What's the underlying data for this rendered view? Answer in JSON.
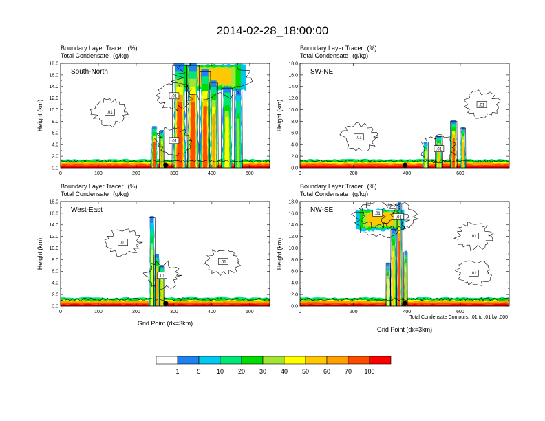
{
  "figure": {
    "title": "2014-02-28_18:00:00",
    "note": "Total Condensate Contours: .01 to .01 by .000"
  },
  "chart_data": [
    {
      "type": "heatmap",
      "panel_label": "South-North",
      "header_line1_field": "Boundary Layer Tracer",
      "header_line1_unit": "(%)",
      "header_line2_field": "Total Condensate",
      "header_line2_unit": "(g/kg)",
      "xlabel": "",
      "ylabel": "Height (km)",
      "xlim": [
        0,
        553
      ],
      "ylim": [
        0,
        18
      ],
      "x_ticks": [
        "0",
        "100",
        "200",
        "300",
        "400",
        "500"
      ],
      "y_ticks": [
        "0.0",
        "2.0",
        "4.0",
        "6.0",
        "8.0",
        "10.0",
        "12.0",
        "14.0",
        "16.0",
        "18.0"
      ],
      "station_x": 278,
      "contour_value_label": ".01",
      "contour_labels": [
        {
          "x": 130,
          "y": 9.6,
          "text": ".01"
        },
        {
          "x": 300,
          "y": 12.4,
          "text": ".01"
        },
        {
          "x": 300,
          "y": 4.7,
          "text": ".01"
        }
      ],
      "plumes": [
        {
          "center": 248,
          "width": 16,
          "top": 7.2,
          "strength": 70
        },
        {
          "center": 268,
          "width": 12,
          "top": 6.5,
          "strength": 60
        },
        {
          "center": 315,
          "width": 34,
          "top": 18,
          "strength": 80
        },
        {
          "center": 350,
          "width": 30,
          "top": 18,
          "strength": 75
        },
        {
          "center": 382,
          "width": 26,
          "top": 17,
          "strength": 70
        },
        {
          "center": 405,
          "width": 20,
          "top": 15,
          "strength": 60
        },
        {
          "center": 440,
          "width": 26,
          "top": 14,
          "strength": 45
        },
        {
          "center": 470,
          "width": 18,
          "top": 13.5,
          "strength": 30
        }
      ],
      "anvil": {
        "x0": 310,
        "x1": 490,
        "base": 13.0,
        "top": 18,
        "strength": 60
      }
    },
    {
      "type": "heatmap",
      "panel_label": "SW-NE",
      "header_line1_field": "Boundary Layer Tracer",
      "header_line1_unit": "(%)",
      "header_line2_field": "Total Condensate",
      "header_line2_unit": "(g/kg)",
      "xlabel": "",
      "ylabel": "Height (km)",
      "xlim": [
        0,
        783
      ],
      "ylim": [
        0,
        18
      ],
      "x_ticks": [
        "0",
        "200",
        "400",
        "600"
      ],
      "y_ticks": [
        "0.0",
        "2.0",
        "4.0",
        "6.0",
        "8.0",
        "10.0",
        "12.0",
        "14.0",
        "16.0",
        "18.0"
      ],
      "station_x": 393,
      "contour_value_label": ".01",
      "contour_labels": [
        {
          "x": 680,
          "y": 10.9,
          "text": ".01"
        },
        {
          "x": 220,
          "y": 5.3,
          "text": ".01"
        },
        {
          "x": 520,
          "y": 3.3,
          "text": ".01"
        }
      ],
      "plumes": [
        {
          "center": 520,
          "width": 24,
          "top": 5.5,
          "strength": 55
        },
        {
          "center": 575,
          "width": 22,
          "top": 8.2,
          "strength": 70
        },
        {
          "center": 610,
          "width": 18,
          "top": 7.0,
          "strength": 55
        },
        {
          "center": 470,
          "width": 18,
          "top": 4.5,
          "strength": 40
        }
      ],
      "anvil": null
    },
    {
      "type": "heatmap",
      "panel_label": "West-East",
      "header_line1_field": "Boundary Layer Tracer",
      "header_line1_unit": "(%)",
      "header_line2_field": "Total Condensate",
      "header_line2_unit": "(g/kg)",
      "xlabel": "Grid Point (dx=3km)",
      "ylabel": "Height (km)",
      "xlim": [
        0,
        553
      ],
      "ylim": [
        0,
        18
      ],
      "x_ticks": [
        "0",
        "100",
        "200",
        "300",
        "400",
        "500"
      ],
      "y_ticks": [
        "0.0",
        "2.0",
        "4.0",
        "6.0",
        "8.0",
        "10.0",
        "12.0",
        "14.0",
        "16.0",
        "18.0"
      ],
      "station_x": 278,
      "contour_value_label": ".01",
      "contour_labels": [
        {
          "x": 165,
          "y": 11.0,
          "text": ".01"
        },
        {
          "x": 430,
          "y": 7.7,
          "text": ".01"
        },
        {
          "x": 268,
          "y": 5.3,
          "text": ".01"
        }
      ],
      "plumes": [
        {
          "center": 242,
          "width": 14,
          "top": 15.5,
          "strength": 40
        },
        {
          "center": 255,
          "width": 14,
          "top": 9.0,
          "strength": 65
        },
        {
          "center": 268,
          "width": 12,
          "top": 7.0,
          "strength": 55
        }
      ],
      "anvil": null
    },
    {
      "type": "heatmap",
      "panel_label": "NW-SE",
      "header_line1_field": "Boundary Layer Tracer",
      "header_line1_unit": "(%)",
      "header_line2_field": "Total Condensate",
      "header_line2_unit": "(g/kg)",
      "xlabel": "Grid Point (dx=3km)",
      "ylabel": "Height (km)",
      "xlim": [
        0,
        783
      ],
      "ylim": [
        0,
        18
      ],
      "x_ticks": [
        "0",
        "200",
        "400",
        "600"
      ],
      "y_ticks": [
        "0.0",
        "2.0",
        "4.0",
        "6.0",
        "8.0",
        "10.0",
        "12.0",
        "14.0",
        "16.0",
        "18.0"
      ],
      "station_x": 393,
      "contour_value_label": ".01",
      "contour_labels": [
        {
          "x": 290,
          "y": 16.0,
          "text": ".01"
        },
        {
          "x": 370,
          "y": 15.4,
          "text": ".01"
        },
        {
          "x": 650,
          "y": 12.1,
          "text": ".01"
        },
        {
          "x": 650,
          "y": 5.7,
          "text": ".01"
        }
      ],
      "plumes": [
        {
          "center": 350,
          "width": 18,
          "top": 13.5,
          "strength": 55
        },
        {
          "center": 372,
          "width": 16,
          "top": 18,
          "strength": 75
        },
        {
          "center": 330,
          "width": 14,
          "top": 7.5,
          "strength": 40
        },
        {
          "center": 395,
          "width": 12,
          "top": 9.5,
          "strength": 50
        }
      ],
      "anvil": {
        "x0": 210,
        "x1": 390,
        "base": 12.8,
        "top": 16.8,
        "strength": 60
      }
    }
  ],
  "colorbar": {
    "levels": [
      "1",
      "5",
      "10",
      "20",
      "30",
      "40",
      "50",
      "60",
      "70",
      "100"
    ],
    "colors": [
      "#ffffff",
      "#1e82f0",
      "#00c8f0",
      "#00e678",
      "#00dc00",
      "#a0e632",
      "#ffff00",
      "#ffc800",
      "#ffa000",
      "#ff4b00",
      "#ff0000"
    ]
  },
  "colors": {
    "contour_line": "#000000",
    "station_marker": "#000000",
    "frame": "#000000"
  }
}
